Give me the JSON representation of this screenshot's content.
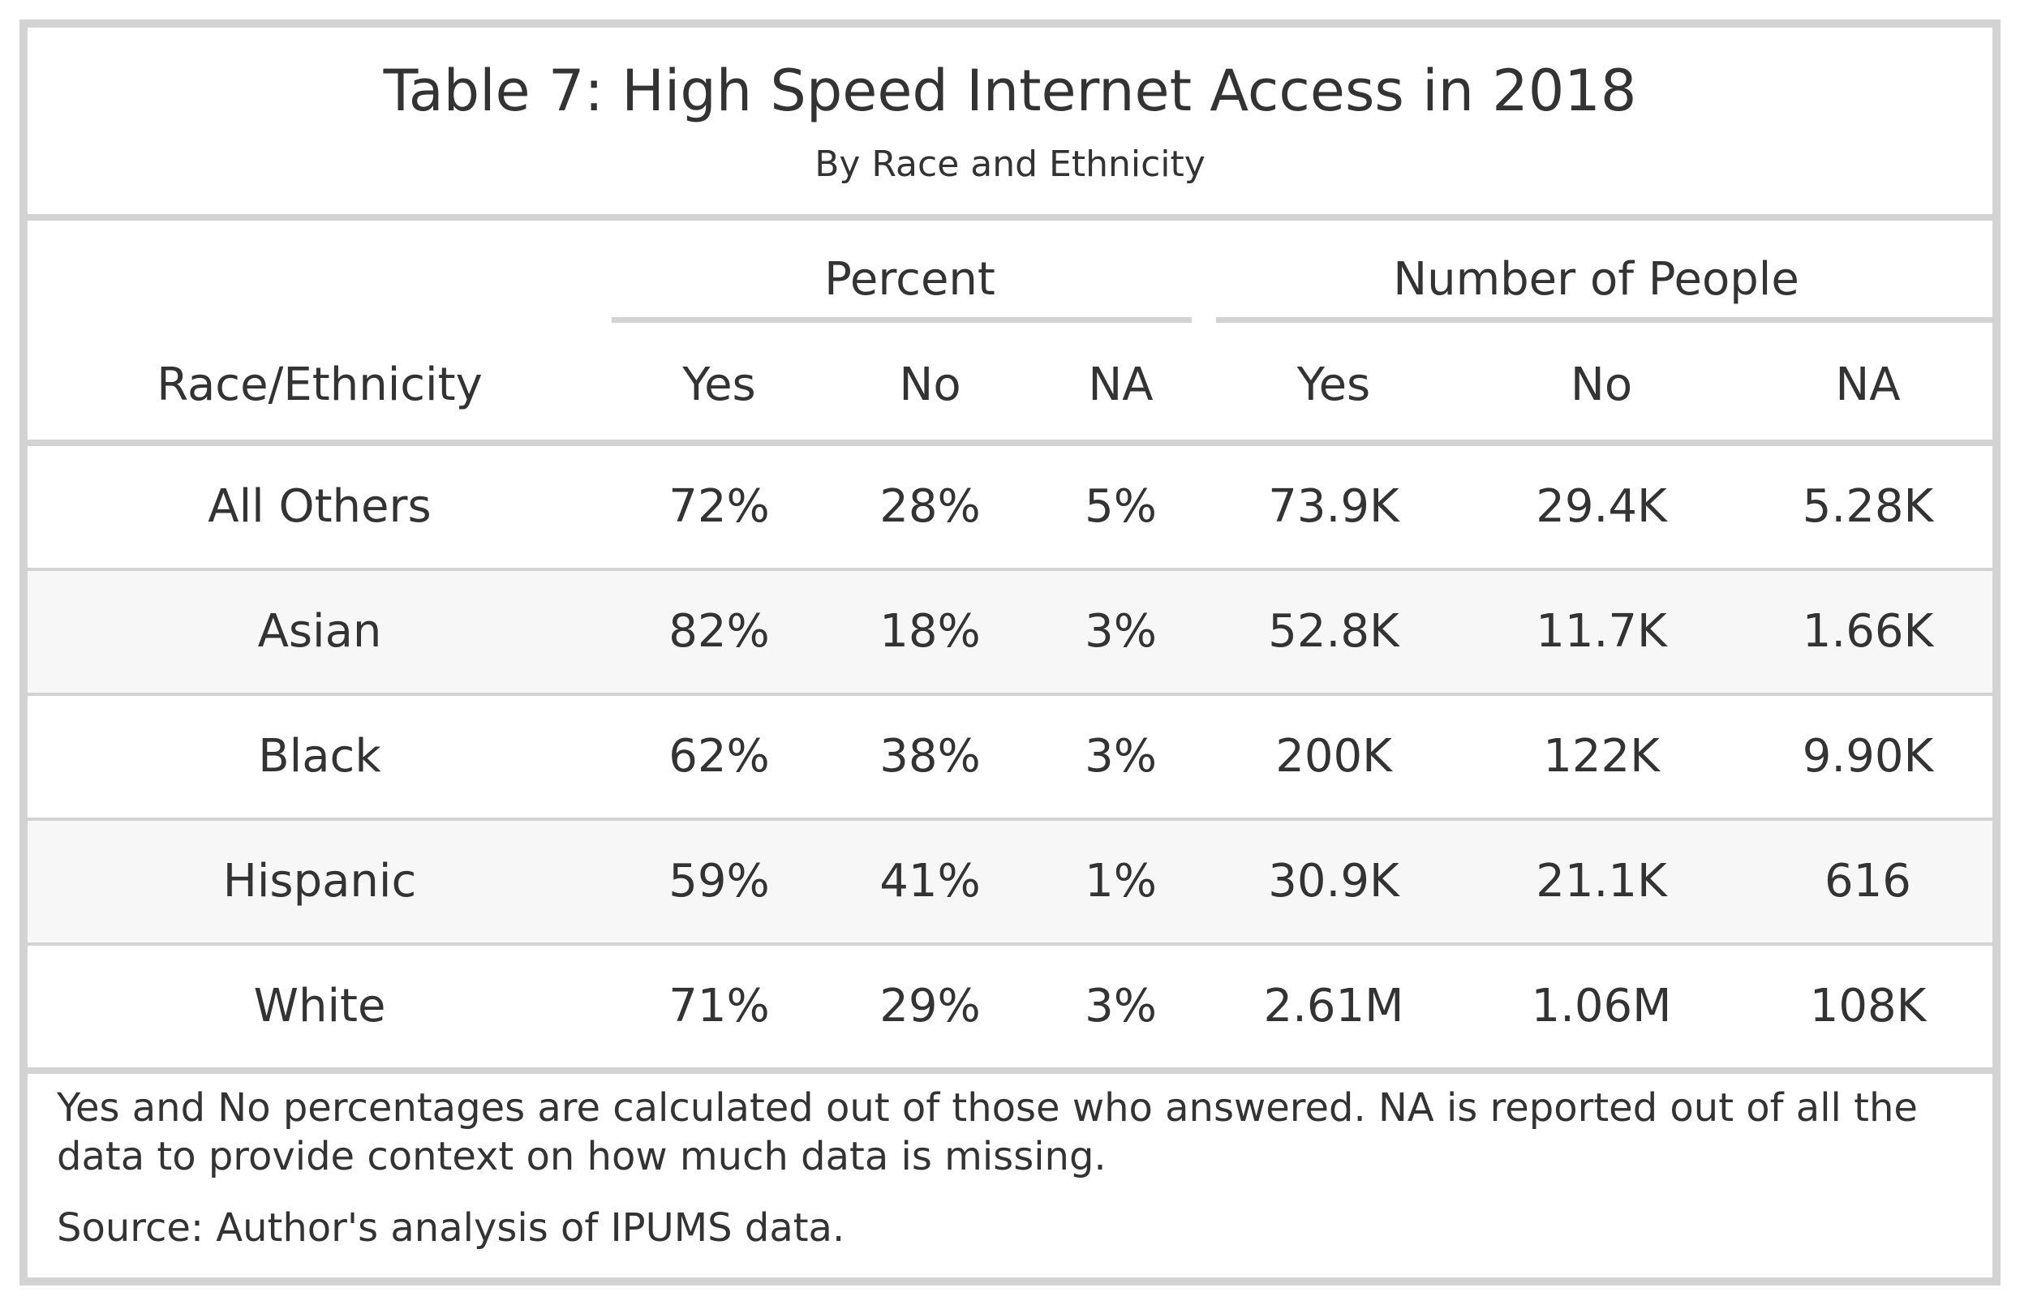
{
  "table": {
    "title": "Table 7: High Speed Internet Access in 2018",
    "subtitle": "By Race and Ethnicity",
    "spanners": {
      "percent": "Percent",
      "people": "Number of People"
    },
    "columns": [
      "Race/Ethnicity",
      "Yes",
      "No",
      "NA",
      "Yes",
      "No",
      "NA"
    ],
    "rows": [
      {
        "group": "All Others",
        "pct_yes": "72%",
        "pct_no": "28%",
        "pct_na": "5%",
        "num_yes": "73.9K",
        "num_no": "29.4K",
        "num_na": "5.28K"
      },
      {
        "group": "Asian",
        "pct_yes": "82%",
        "pct_no": "18%",
        "pct_na": "3%",
        "num_yes": "52.8K",
        "num_no": "11.7K",
        "num_na": "1.66K"
      },
      {
        "group": "Black",
        "pct_yes": "62%",
        "pct_no": "38%",
        "pct_na": "3%",
        "num_yes": "200K",
        "num_no": "122K",
        "num_na": "9.90K"
      },
      {
        "group": "Hispanic",
        "pct_yes": "59%",
        "pct_no": "41%",
        "pct_na": "1%",
        "num_yes": "30.9K",
        "num_no": "21.1K",
        "num_na": "616"
      },
      {
        "group": "White",
        "pct_yes": "71%",
        "pct_no": "29%",
        "pct_na": "3%",
        "num_yes": "2.61M",
        "num_no": "1.06M",
        "num_na": "108K"
      }
    ],
    "footnote": "Yes and No percentages are calculated out of those who answered. NA is reported out of all the data to provide context on how much data is missing.",
    "source": "Source: Author's analysis of IPUMS data."
  },
  "colors": {
    "border": "#d3d3d3",
    "stripe": "#f7f7f7",
    "text": "#333333"
  }
}
